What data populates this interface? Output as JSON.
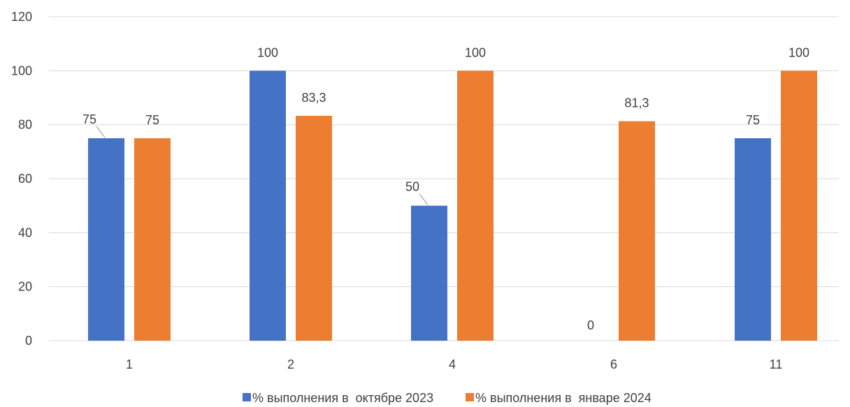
{
  "chart_data": {
    "type": "bar",
    "categories": [
      "1",
      "2",
      "4",
      "6",
      "11"
    ],
    "series": [
      {
        "name": "% выполнения в  октябре 2023",
        "values": [
          75,
          100,
          50,
          0,
          75
        ],
        "labels": [
          "75",
          "100",
          "50",
          "0",
          "75"
        ],
        "color": "#4472C4"
      },
      {
        "name": "% выполнения в  январе 2024",
        "values": [
          75,
          83.3,
          100,
          81.3,
          100
        ],
        "labels": [
          "75",
          "83,3",
          "100",
          "81,3",
          "100"
        ],
        "color": "#ED7D31"
      }
    ],
    "ylim": [
      0,
      120
    ],
    "yticks": [
      "0",
      "20",
      "40",
      "60",
      "80",
      "100",
      "120"
    ],
    "grid": true,
    "legend_position": "bottom",
    "gridline_color": "#D9D9D9"
  }
}
